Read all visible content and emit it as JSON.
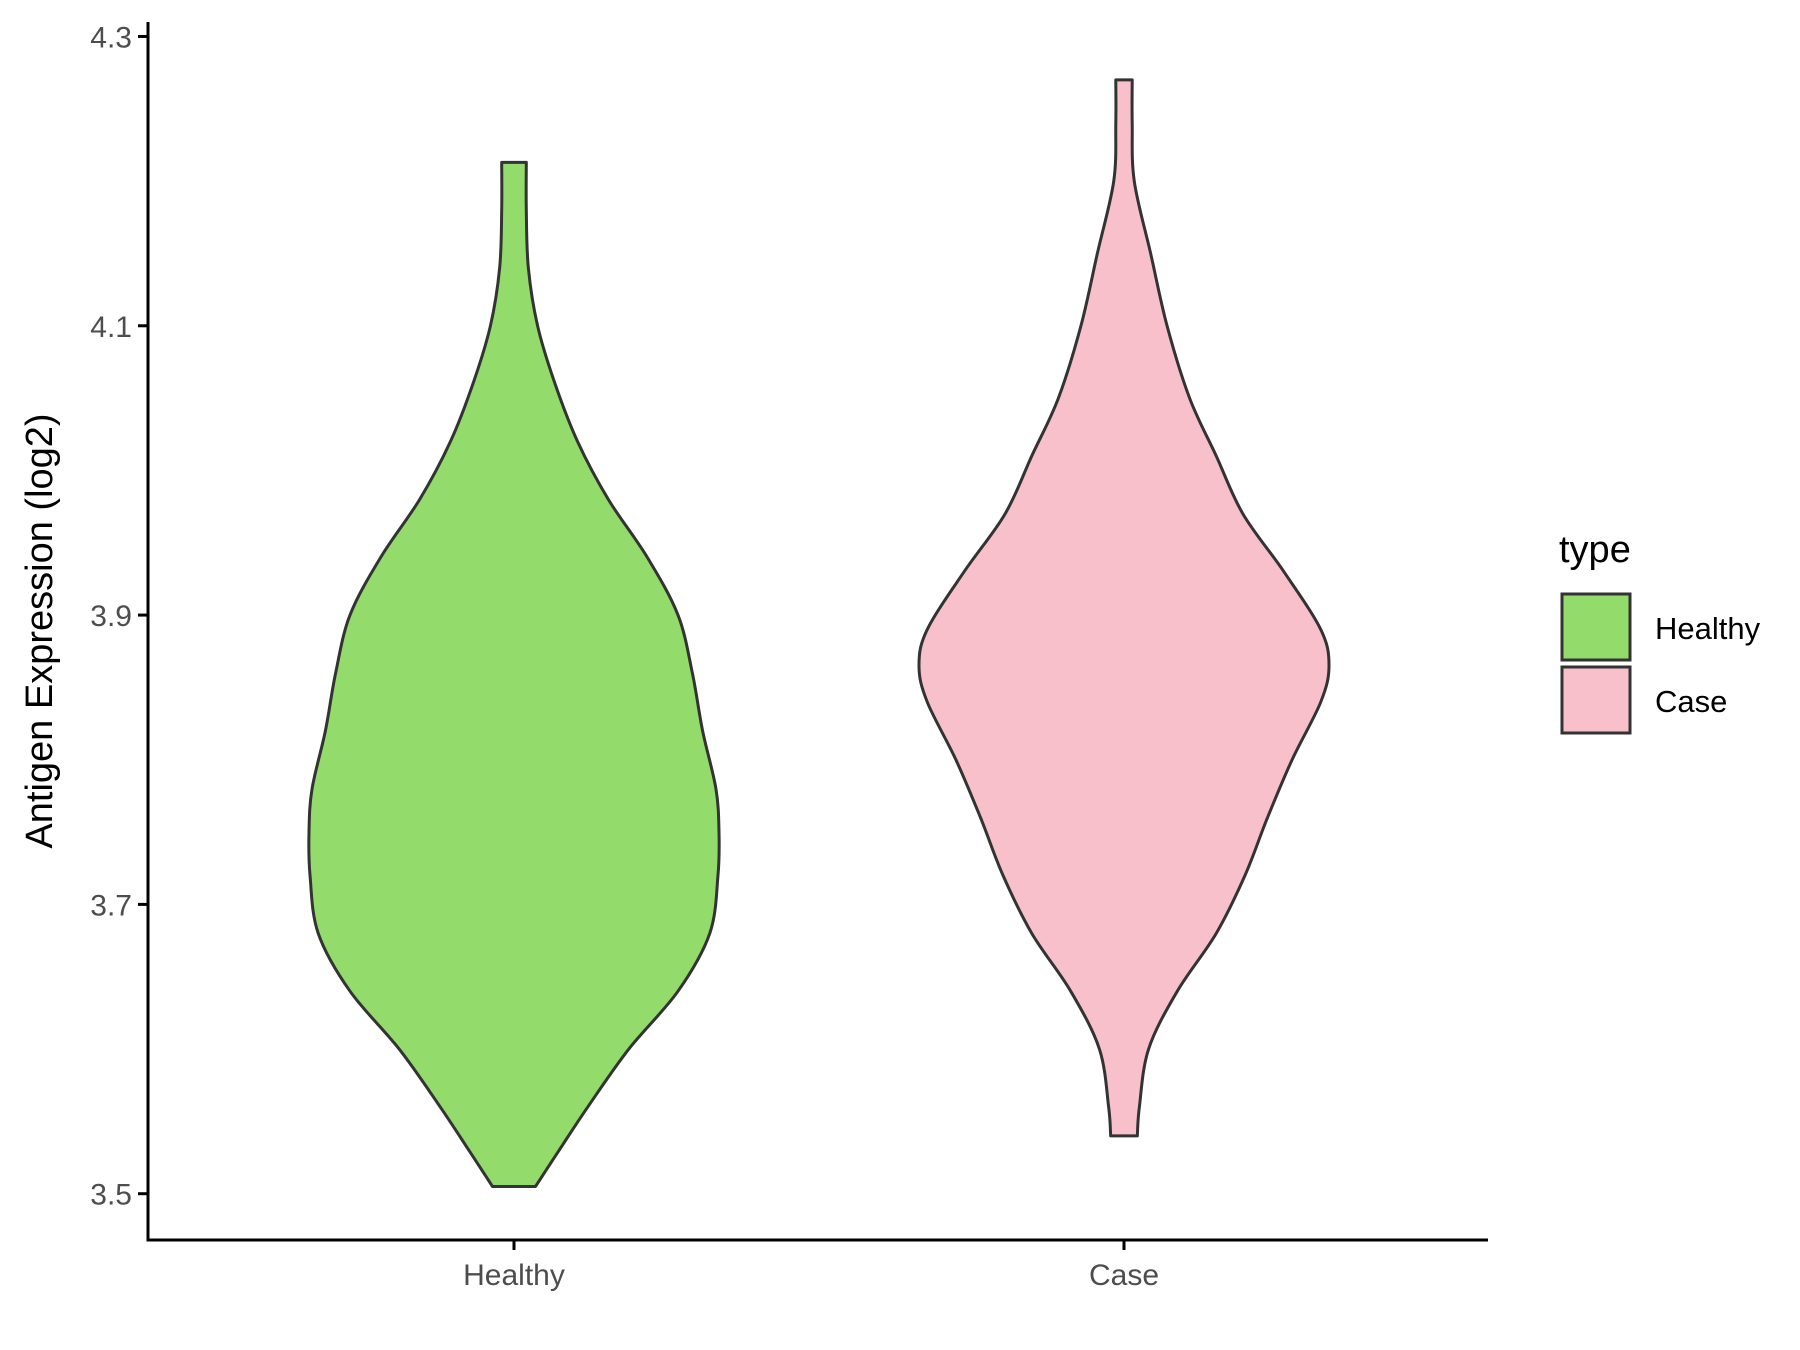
{
  "chart_data": {
    "type": "violin",
    "ylabel": "Antigen Expression (log2)",
    "xlabel": "",
    "ylim": [
      3.468,
      4.31
    ],
    "y_ticks": [
      "3.5",
      "3.7",
      "3.9",
      "4.1",
      "4.3"
    ],
    "y_tick_values": [
      3.5,
      3.7,
      3.9,
      4.1,
      4.3
    ],
    "categories": [
      "Healthy",
      "Case"
    ],
    "grid": false,
    "legend": {
      "title": "type",
      "placement": "right",
      "items": [
        {
          "label": "Healthy",
          "color": "#93dc6b"
        },
        {
          "label": "Case",
          "color": "#f7c0cb"
        }
      ]
    },
    "series": [
      {
        "name": "Healthy",
        "color": "#93dc6b",
        "min": 3.505,
        "max": 4.213,
        "profile": [
          [
            3.505,
            0.105
          ],
          [
            3.53,
            0.22
          ],
          [
            3.56,
            0.36
          ],
          [
            3.6,
            0.56
          ],
          [
            3.64,
            0.8
          ],
          [
            3.68,
            0.955
          ],
          [
            3.72,
            0.995
          ],
          [
            3.75,
            1.0
          ],
          [
            3.78,
            0.985
          ],
          [
            3.82,
            0.92
          ],
          [
            3.86,
            0.87
          ],
          [
            3.9,
            0.8
          ],
          [
            3.94,
            0.65
          ],
          [
            3.98,
            0.46
          ],
          [
            4.02,
            0.31
          ],
          [
            4.06,
            0.2
          ],
          [
            4.1,
            0.115
          ],
          [
            4.14,
            0.07
          ],
          [
            4.18,
            0.06
          ],
          [
            4.213,
            0.06
          ]
        ]
      },
      {
        "name": "Case",
        "color": "#f7c0cb",
        "min": 3.54,
        "max": 4.27,
        "profile": [
          [
            3.54,
            0.065
          ],
          [
            3.56,
            0.075
          ],
          [
            3.6,
            0.12
          ],
          [
            3.64,
            0.26
          ],
          [
            3.68,
            0.45
          ],
          [
            3.72,
            0.59
          ],
          [
            3.76,
            0.7
          ],
          [
            3.8,
            0.82
          ],
          [
            3.84,
            0.96
          ],
          [
            3.865,
            1.0
          ],
          [
            3.89,
            0.96
          ],
          [
            3.93,
            0.78
          ],
          [
            3.97,
            0.58
          ],
          [
            4.01,
            0.45
          ],
          [
            4.05,
            0.32
          ],
          [
            4.1,
            0.21
          ],
          [
            4.15,
            0.13
          ],
          [
            4.2,
            0.05
          ],
          [
            4.24,
            0.04
          ],
          [
            4.27,
            0.04
          ]
        ]
      }
    ]
  }
}
